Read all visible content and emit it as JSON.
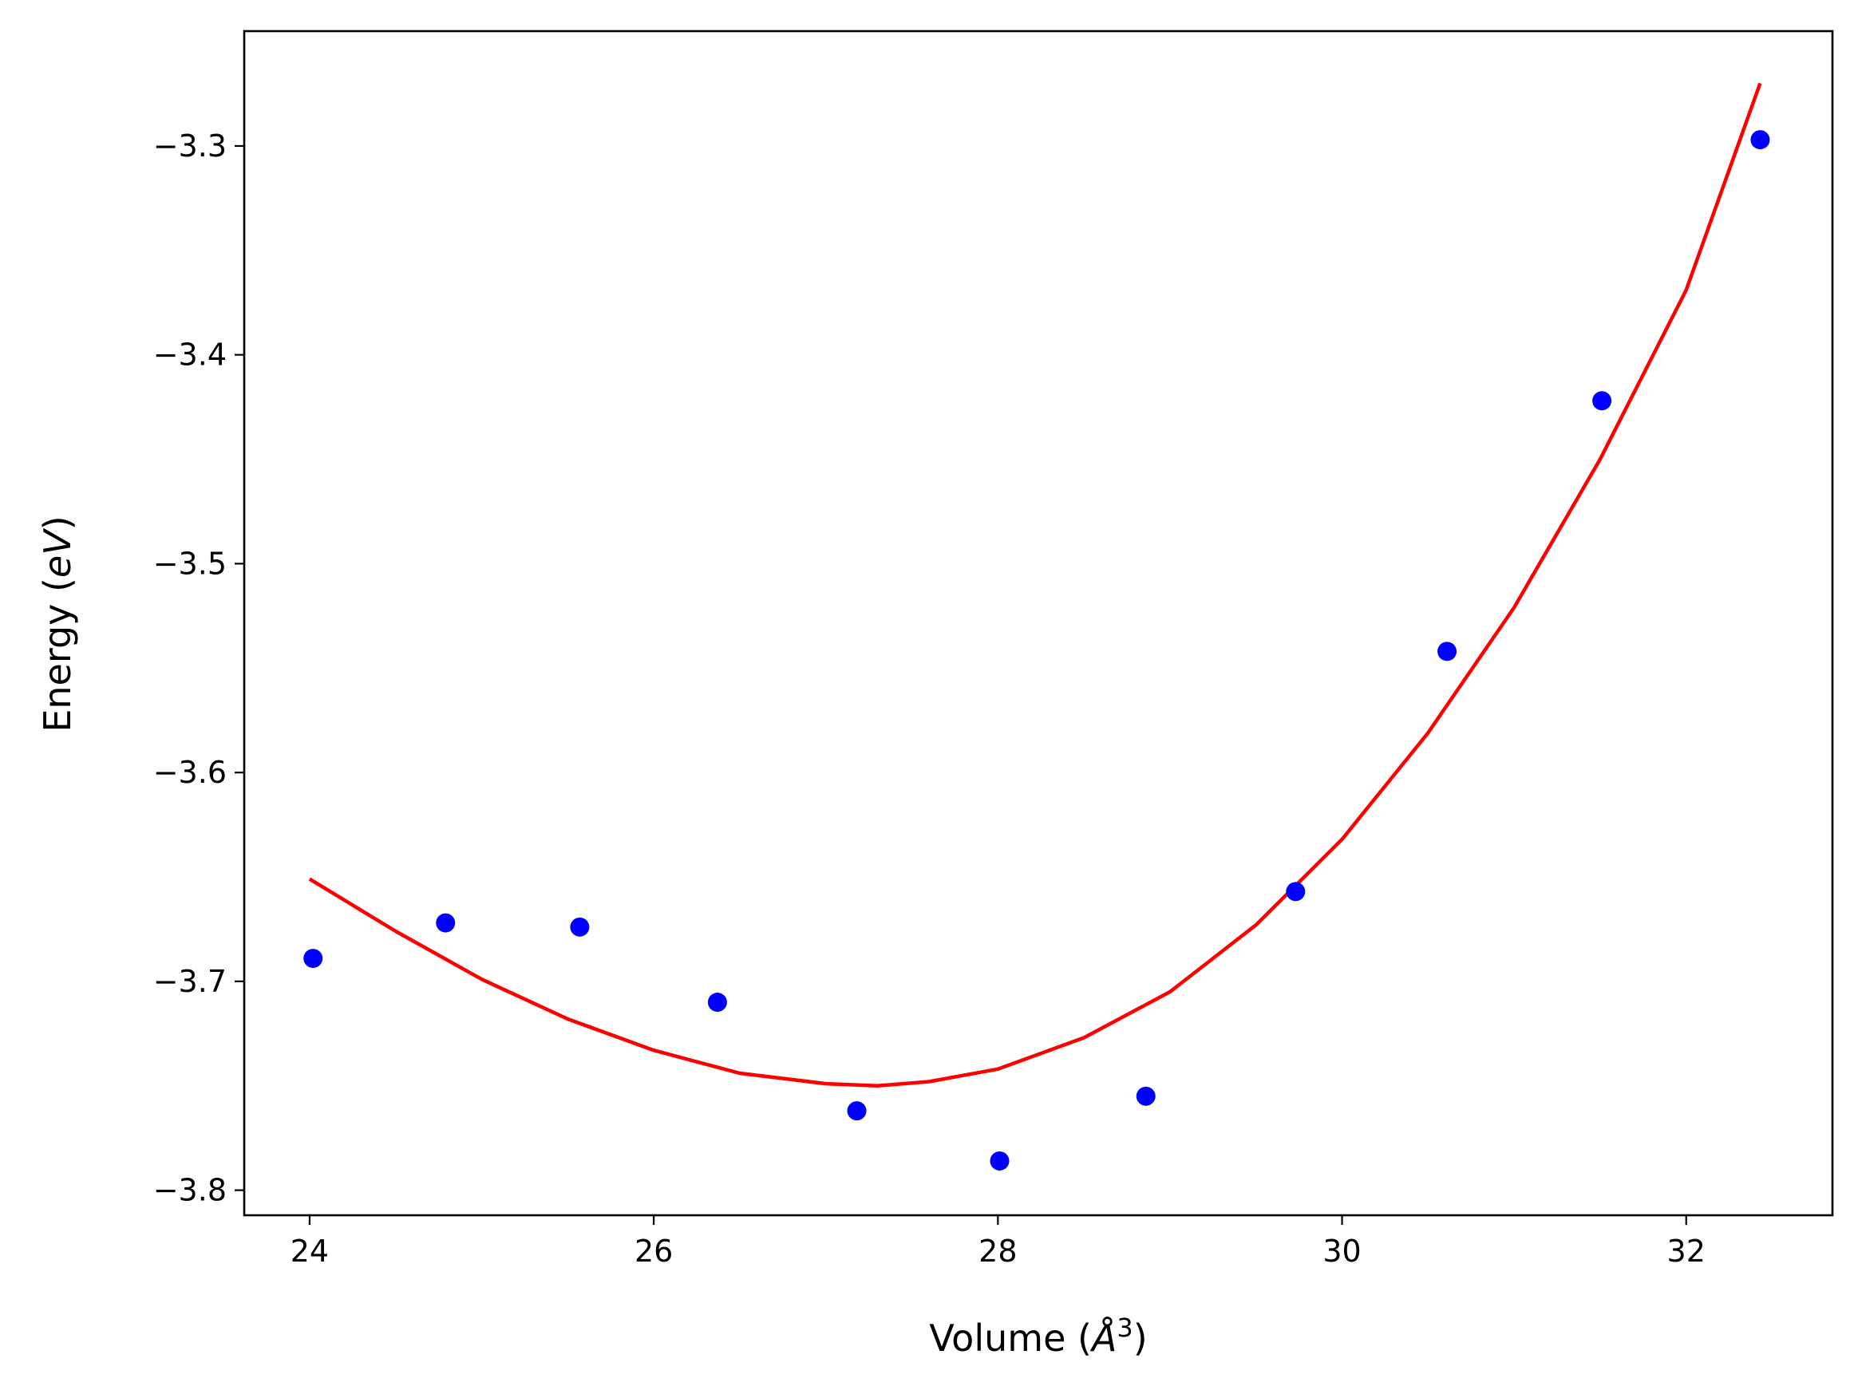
{
  "chart_data": {
    "type": "scatter",
    "xlabel": "Volume (Å³)",
    "ylabel": "Energy (eV)",
    "xlabel_parts": {
      "prefix": "Volume (",
      "symbol": "Å",
      "sup": "3",
      "suffix": ")"
    },
    "ylabel_parts": {
      "prefix": "Energy (",
      "symbol": "eV",
      "suffix": ")"
    },
    "xlim": [
      23.62,
      32.85
    ],
    "ylim": [
      -3.812,
      -3.245
    ],
    "xticks": [
      24,
      26,
      28,
      30,
      32
    ],
    "yticks": [
      -3.8,
      -3.7,
      -3.6,
      -3.5,
      -3.4,
      -3.3
    ],
    "xtick_labels": [
      "24",
      "26",
      "28",
      "30",
      "32"
    ],
    "ytick_labels": [
      "−3.8",
      "−3.7",
      "−3.6",
      "−3.5",
      "−3.4",
      "−3.3"
    ],
    "grid": false,
    "series": [
      {
        "kind": "points",
        "color": "#0000ff",
        "x": [
          24.02,
          24.79,
          25.57,
          26.37,
          27.18,
          28.01,
          28.86,
          29.73,
          30.61,
          31.51,
          32.43
        ],
        "y": [
          -3.689,
          -3.672,
          -3.674,
          -3.71,
          -3.762,
          -3.786,
          -3.755,
          -3.657,
          -3.542,
          -3.422,
          -3.297
        ]
      },
      {
        "kind": "line",
        "color": "#ff0000",
        "x": [
          24.0,
          24.5,
          25.0,
          25.5,
          26.0,
          26.5,
          27.0,
          27.3,
          27.6,
          28.0,
          28.5,
          29.0,
          29.5,
          30.0,
          30.5,
          31.0,
          31.5,
          32.0,
          32.43
        ],
        "y": [
          -3.651,
          -3.676,
          -3.699,
          -3.718,
          -3.733,
          -3.744,
          -3.749,
          -3.75,
          -3.748,
          -3.742,
          -3.727,
          -3.705,
          -3.673,
          -3.632,
          -3.581,
          -3.521,
          -3.45,
          -3.369,
          -3.27
        ]
      }
    ]
  }
}
